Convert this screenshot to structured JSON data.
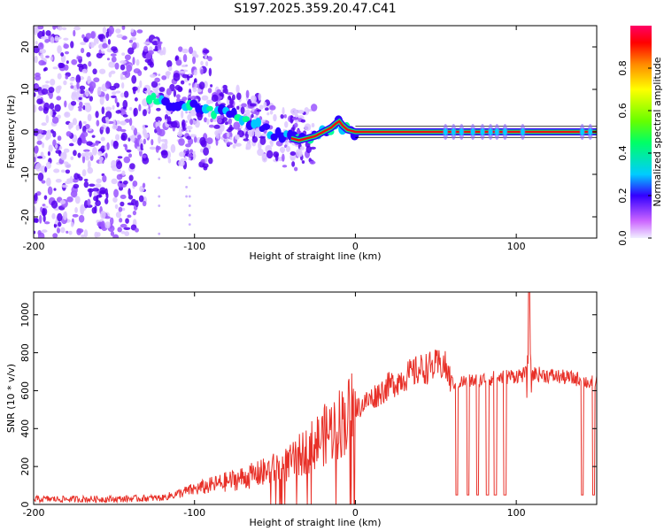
{
  "title": "S197.2025.359.20.47.C41",
  "chart_data": [
    {
      "type": "heatmap",
      "xlabel": "Height of straight line (km)",
      "ylabel": "Frequency (Hz)",
      "xlim": [
        -200,
        150
      ],
      "ylim": [
        -25,
        25
      ],
      "xticks": [
        "-200",
        "-100",
        "0",
        "100"
      ],
      "yticks": [
        "-20",
        "-10",
        "0",
        "10",
        "20"
      ],
      "ridge": {
        "x": [
          -125,
          -110,
          -100,
          -90,
          -80,
          -70,
          -60,
          -50,
          -45,
          -40,
          -35,
          -30,
          -25,
          -20,
          -15,
          -12,
          -10,
          -8,
          -5,
          0,
          150
        ],
        "frequency_hz": [
          8,
          6,
          6,
          5,
          4,
          3,
          1.5,
          -0.5,
          -1,
          -1.5,
          -2,
          -1.5,
          -1,
          0,
          1,
          2,
          2.5,
          1.5,
          0.5,
          0,
          0
        ]
      },
      "stable_band_marks_x": [
        56,
        61,
        66,
        73,
        79,
        84,
        88,
        93,
        104,
        141,
        146
      ],
      "colorbar": {
        "label": "Normalized spectral amplitude",
        "range": [
          0,
          1
        ],
        "ticks": [
          "0.0",
          "0.2",
          "0.4",
          "0.6",
          "0.8"
        ]
      }
    },
    {
      "type": "line",
      "xlabel": "Height of straight line (km)",
      "ylabel": "SNR (10 * v/v)",
      "xlim": [
        -200,
        150
      ],
      "ylim": [
        0,
        1120
      ],
      "xticks": [
        "-200",
        "-100",
        "0",
        "100"
      ],
      "yticks": [
        "0",
        "200",
        "400",
        "600",
        "800",
        "1000"
      ],
      "color": "#e83028",
      "series": [
        {
          "name": "SNR",
          "x": [
            -200,
            -150,
            -120,
            -100,
            -80,
            -60,
            -40,
            -20,
            0,
            20,
            30,
            40,
            50,
            55,
            60,
            70,
            80,
            90,
            100,
            110,
            120,
            130,
            140,
            145,
            150
          ],
          "y": [
            28,
            28,
            35,
            80,
            120,
            160,
            220,
            360,
            500,
            620,
            670,
            710,
            730,
            740,
            640,
            650,
            660,
            670,
            680,
            690,
            680,
            670,
            660,
            640,
            650
          ]
        }
      ],
      "dropout_x": [
        63,
        70,
        76,
        82,
        87,
        93,
        141,
        148
      ],
      "dropout_value": 50,
      "spike": {
        "x": 108,
        "y": 1120
      }
    }
  ]
}
